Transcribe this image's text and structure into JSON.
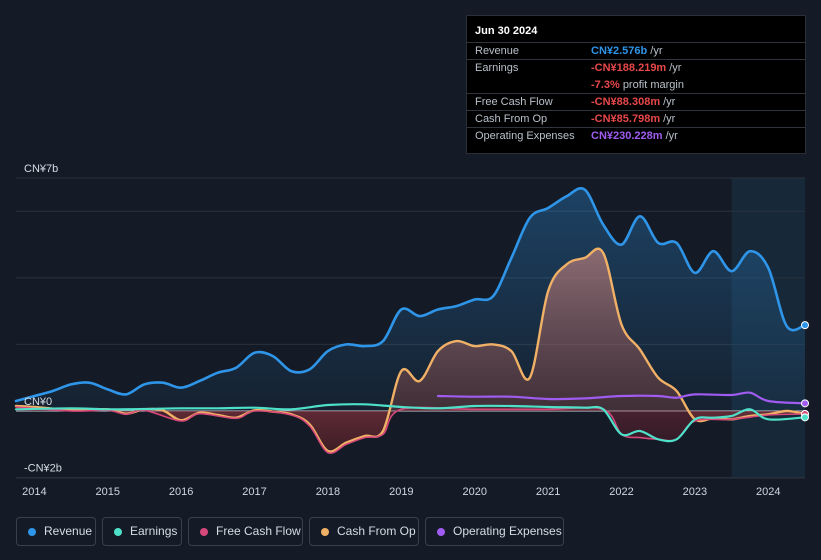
{
  "tooltip": {
    "date": "Jun 30 2024",
    "rows": [
      {
        "label": "Revenue",
        "value": "CN¥2.576b",
        "unit": "/yr",
        "color": "#2f95e8"
      },
      {
        "label": "Earnings",
        "value": "-CN¥188.219m",
        "unit": "/yr",
        "color": "#e8484a"
      },
      {
        "label": "Free Cash Flow",
        "value": "-CN¥88.308m",
        "unit": "/yr",
        "color": "#e8484a"
      },
      {
        "label": "Cash From Op",
        "value": "-CN¥85.798m",
        "unit": "/yr",
        "color": "#e8484a"
      },
      {
        "label": "Operating Expenses",
        "value": "CN¥230.228m",
        "unit": "/yr",
        "color": "#a05cf0"
      }
    ],
    "margin_value": "-7.3%",
    "margin_label": "profit margin"
  },
  "legend": [
    {
      "label": "Revenue",
      "color": "#2f95e8"
    },
    {
      "label": "Earnings",
      "color": "#4fe0c9"
    },
    {
      "label": "Free Cash Flow",
      "color": "#d6487a"
    },
    {
      "label": "Cash From Op",
      "color": "#f0b066"
    },
    {
      "label": "Operating Expenses",
      "color": "#a05cf0"
    }
  ],
  "chart_data": {
    "type": "line",
    "title": "",
    "xlabel": "",
    "ylabel": "",
    "y_tick_labels": {
      "top": "CN¥7b",
      "zero": "CN¥0",
      "bottom": "-CN¥2b"
    },
    "ylim": [
      -2.0,
      7.0
    ],
    "xlim": [
      2013.75,
      2024.5
    ],
    "highlight_from": 2023.5,
    "x_ticks": [
      2014,
      2015,
      2016,
      2017,
      2018,
      2019,
      2020,
      2021,
      2022,
      2023,
      2024
    ],
    "series": [
      {
        "name": "Revenue",
        "color": "#2f95e8",
        "fill": true,
        "points": [
          [
            2013.75,
            0.3
          ],
          [
            2014.0,
            0.45
          ],
          [
            2014.25,
            0.6
          ],
          [
            2014.5,
            0.8
          ],
          [
            2014.75,
            0.85
          ],
          [
            2015.0,
            0.65
          ],
          [
            2015.25,
            0.5
          ],
          [
            2015.5,
            0.8
          ],
          [
            2015.75,
            0.85
          ],
          [
            2016.0,
            0.7
          ],
          [
            2016.25,
            0.9
          ],
          [
            2016.5,
            1.15
          ],
          [
            2016.75,
            1.3
          ],
          [
            2017.0,
            1.75
          ],
          [
            2017.25,
            1.65
          ],
          [
            2017.5,
            1.2
          ],
          [
            2017.75,
            1.25
          ],
          [
            2018.0,
            1.8
          ],
          [
            2018.25,
            2.0
          ],
          [
            2018.5,
            1.95
          ],
          [
            2018.75,
            2.1
          ],
          [
            2019.0,
            3.05
          ],
          [
            2019.25,
            2.85
          ],
          [
            2019.5,
            3.05
          ],
          [
            2019.75,
            3.15
          ],
          [
            2020.0,
            3.35
          ],
          [
            2020.25,
            3.45
          ],
          [
            2020.5,
            4.6
          ],
          [
            2020.75,
            5.8
          ],
          [
            2021.0,
            6.1
          ],
          [
            2021.25,
            6.45
          ],
          [
            2021.5,
            6.65
          ],
          [
            2021.75,
            5.6
          ],
          [
            2022.0,
            5.0
          ],
          [
            2022.25,
            5.85
          ],
          [
            2022.5,
            5.05
          ],
          [
            2022.75,
            5.05
          ],
          [
            2023.0,
            4.15
          ],
          [
            2023.25,
            4.8
          ],
          [
            2023.5,
            4.2
          ],
          [
            2023.75,
            4.8
          ],
          [
            2024.0,
            4.3
          ],
          [
            2024.25,
            2.55
          ],
          [
            2024.5,
            2.58
          ]
        ]
      },
      {
        "name": "Cash From Op",
        "color": "#f0b066",
        "fill": true,
        "points": [
          [
            2013.75,
            0.15
          ],
          [
            2014.0,
            0.12
          ],
          [
            2014.5,
            0.03
          ],
          [
            2015.0,
            0.05
          ],
          [
            2015.25,
            -0.08
          ],
          [
            2015.5,
            0.05
          ],
          [
            2015.75,
            0.02
          ],
          [
            2016.0,
            -0.28
          ],
          [
            2016.25,
            -0.05
          ],
          [
            2016.5,
            -0.12
          ],
          [
            2016.75,
            -0.2
          ],
          [
            2017.0,
            0.02
          ],
          [
            2017.25,
            -0.02
          ],
          [
            2017.5,
            -0.1
          ],
          [
            2017.75,
            -0.4
          ],
          [
            2018.0,
            -1.2
          ],
          [
            2018.25,
            -0.95
          ],
          [
            2018.5,
            -0.75
          ],
          [
            2018.75,
            -0.6
          ],
          [
            2019.0,
            1.2
          ],
          [
            2019.25,
            0.9
          ],
          [
            2019.5,
            1.8
          ],
          [
            2019.75,
            2.1
          ],
          [
            2020.0,
            1.95
          ],
          [
            2020.25,
            2.0
          ],
          [
            2020.5,
            1.8
          ],
          [
            2020.75,
            1.0
          ],
          [
            2021.0,
            3.6
          ],
          [
            2021.25,
            4.4
          ],
          [
            2021.5,
            4.6
          ],
          [
            2021.75,
            4.75
          ],
          [
            2022.0,
            2.6
          ],
          [
            2022.25,
            1.85
          ],
          [
            2022.5,
            1.0
          ],
          [
            2022.75,
            0.6
          ],
          [
            2023.0,
            -0.25
          ],
          [
            2023.25,
            -0.22
          ],
          [
            2023.5,
            -0.25
          ],
          [
            2023.75,
            -0.15
          ],
          [
            2024.0,
            -0.1
          ],
          [
            2024.25,
            0.0
          ],
          [
            2024.5,
            -0.09
          ]
        ]
      },
      {
        "name": "Free Cash Flow",
        "color": "#d6487a",
        "fill": true,
        "points": [
          [
            2013.75,
            0.12
          ],
          [
            2014.5,
            0.0
          ],
          [
            2015.0,
            0.02
          ],
          [
            2015.25,
            -0.1
          ],
          [
            2015.5,
            0.02
          ],
          [
            2016.0,
            -0.3
          ],
          [
            2016.25,
            -0.08
          ],
          [
            2016.75,
            -0.22
          ],
          [
            2017.0,
            0.0
          ],
          [
            2017.5,
            -0.12
          ],
          [
            2017.75,
            -0.45
          ],
          [
            2018.0,
            -1.25
          ],
          [
            2018.25,
            -1.0
          ],
          [
            2018.5,
            -0.8
          ],
          [
            2018.75,
            -0.7
          ],
          [
            2019.0,
            0.05
          ],
          [
            2020.0,
            0.05
          ],
          [
            2021.0,
            0.05
          ],
          [
            2021.75,
            0.05
          ],
          [
            2022.0,
            -0.7
          ],
          [
            2022.25,
            -0.8
          ],
          [
            2022.5,
            -0.85
          ],
          [
            2022.75,
            -0.85
          ],
          [
            2023.0,
            -0.3
          ],
          [
            2023.5,
            -0.25
          ],
          [
            2024.0,
            -0.12
          ],
          [
            2024.5,
            -0.09
          ]
        ]
      },
      {
        "name": "Earnings",
        "color": "#4fe0c9",
        "fill": false,
        "points": [
          [
            2013.75,
            0.05
          ],
          [
            2014.5,
            0.08
          ],
          [
            2015.0,
            0.05
          ],
          [
            2015.5,
            0.06
          ],
          [
            2016.0,
            0.08
          ],
          [
            2016.5,
            0.08
          ],
          [
            2017.0,
            0.1
          ],
          [
            2017.5,
            0.05
          ],
          [
            2018.0,
            0.18
          ],
          [
            2018.5,
            0.2
          ],
          [
            2019.0,
            0.12
          ],
          [
            2019.5,
            0.08
          ],
          [
            2020.0,
            0.15
          ],
          [
            2020.5,
            0.15
          ],
          [
            2021.0,
            0.12
          ],
          [
            2021.5,
            0.1
          ],
          [
            2021.75,
            0.05
          ],
          [
            2022.0,
            -0.7
          ],
          [
            2022.25,
            -0.6
          ],
          [
            2022.5,
            -0.85
          ],
          [
            2022.75,
            -0.85
          ],
          [
            2023.0,
            -0.25
          ],
          [
            2023.25,
            -0.2
          ],
          [
            2023.5,
            -0.15
          ],
          [
            2023.75,
            0.05
          ],
          [
            2024.0,
            -0.25
          ],
          [
            2024.5,
            -0.19
          ]
        ]
      },
      {
        "name": "Operating Expenses",
        "color": "#a05cf0",
        "fill": false,
        "points": [
          [
            2019.5,
            0.45
          ],
          [
            2020.0,
            0.43
          ],
          [
            2020.5,
            0.43
          ],
          [
            2021.0,
            0.36
          ],
          [
            2021.5,
            0.38
          ],
          [
            2022.0,
            0.45
          ],
          [
            2022.5,
            0.45
          ],
          [
            2022.75,
            0.4
          ],
          [
            2023.0,
            0.5
          ],
          [
            2023.5,
            0.48
          ],
          [
            2023.75,
            0.55
          ],
          [
            2024.0,
            0.3
          ],
          [
            2024.5,
            0.23
          ]
        ]
      }
    ]
  }
}
